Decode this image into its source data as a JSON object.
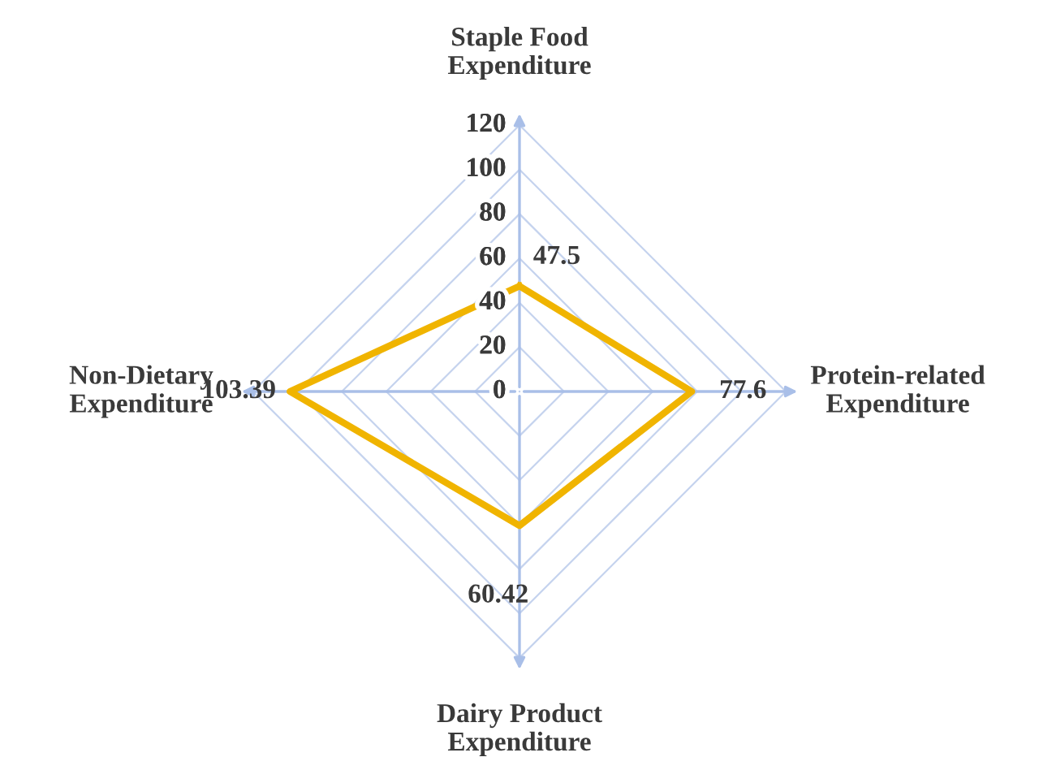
{
  "chart_data": {
    "type": "radar",
    "categories": [
      "Staple Food\nExpenditure",
      "Protein-related\nExpenditure",
      "Dairy Product\nExpenditure",
      "Non-Dietary\nExpenditure"
    ],
    "series": [
      {
        "color": "#f0b400",
        "values": [
          47.5,
          77.6,
          60.42,
          103.39
        ]
      }
    ],
    "ylim": [
      0,
      120
    ],
    "yticks": [
      0,
      20,
      40,
      60,
      80,
      100,
      120
    ],
    "grid": true,
    "data_labels": true,
    "marker": "none",
    "line_style": "solid"
  }
}
